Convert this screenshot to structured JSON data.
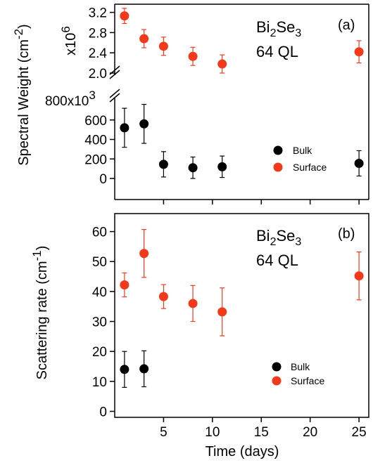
{
  "figure": {
    "shared_ylabel": "Spectral Weight (cm",
    "shared_ylabel_sup": "-2",
    "shared_ylabel_end": ")",
    "xlabel": "Time (days)"
  },
  "chart_data": [
    {
      "id": "a-top",
      "type": "scatter",
      "panel_label": "(a)",
      "compound": {
        "base": "Bi",
        "sub1": "2",
        "mid": "Se",
        "sub2": "3"
      },
      "sample": "64 QL",
      "multiplier": {
        "base": "x10",
        "exp": "6"
      },
      "ylim": [
        2.0,
        3.25
      ],
      "yticks": [
        2.0,
        2.4,
        2.8,
        3.2
      ],
      "ytick_labels": [
        "2.0",
        "2.4",
        "2.8",
        "3.2"
      ],
      "xlim": [
        0,
        26
      ],
      "series": [
        {
          "name": "Surface",
          "color": "#f23a1a",
          "points": [
            {
              "x": 1,
              "y": 3.13,
              "err": 0.15
            },
            {
              "x": 3,
              "y": 2.68,
              "err": 0.18
            },
            {
              "x": 5,
              "y": 2.53,
              "err": 0.18
            },
            {
              "x": 8,
              "y": 2.33,
              "err": 0.18
            },
            {
              "x": 11,
              "y": 2.18,
              "err": 0.18
            },
            {
              "x": 25,
              "y": 2.42,
              "err": 0.22
            }
          ]
        }
      ]
    },
    {
      "id": "a-bottom",
      "type": "scatter",
      "multiplier": {
        "base": "800x10",
        "exp": "3"
      },
      "ylim": [
        0,
        800
      ],
      "yticks": [
        0,
        200,
        400,
        600
      ],
      "ytick_labels": [
        "0",
        "200",
        "400",
        "600"
      ],
      "xlim": [
        0,
        26
      ],
      "xticks": [
        5,
        10,
        15,
        20,
        25
      ],
      "legend": [
        {
          "label": "Bulk",
          "color": "#000000"
        },
        {
          "label": "Surface",
          "color": "#f23a1a"
        }
      ],
      "series": [
        {
          "name": "Bulk",
          "color": "#000000",
          "points": [
            {
              "x": 1,
              "y": 520,
              "err": 200
            },
            {
              "x": 3,
              "y": 560,
              "err": 200
            },
            {
              "x": 5,
              "y": 145,
              "err": 130
            },
            {
              "x": 8,
              "y": 110,
              "err": 110
            },
            {
              "x": 11,
              "y": 120,
              "err": 110
            },
            {
              "x": 25,
              "y": 155,
              "err": 130
            }
          ]
        }
      ]
    },
    {
      "id": "b",
      "type": "scatter",
      "panel_label": "(b)",
      "compound": {
        "base": "Bi",
        "sub1": "2",
        "mid": "Se",
        "sub2": "3"
      },
      "sample": "64 QL",
      "ylabel": "Scattering rate (cm",
      "ylabel_sup": "-1",
      "ylabel_end": ")",
      "ylim": [
        -2,
        66
      ],
      "yticks": [
        0,
        10,
        20,
        30,
        40,
        50,
        60
      ],
      "ytick_labels": [
        "0",
        "10",
        "20",
        "30",
        "40",
        "50",
        "60"
      ],
      "xlim": [
        0,
        26
      ],
      "xticks": [
        5,
        10,
        15,
        20,
        25
      ],
      "xtick_labels": [
        "5",
        "10",
        "15",
        "20",
        "25"
      ],
      "legend": [
        {
          "label": "Bulk",
          "color": "#000000"
        },
        {
          "label": "Surface",
          "color": "#f23a1a"
        }
      ],
      "series": [
        {
          "name": "Bulk",
          "color": "#000000",
          "points": [
            {
              "x": 1,
              "y": 14,
              "err": 6
            },
            {
              "x": 3,
              "y": 14.2,
              "err": 6
            }
          ]
        },
        {
          "name": "Surface",
          "color": "#f23a1a",
          "points": [
            {
              "x": 1,
              "y": 42.2,
              "err": 4
            },
            {
              "x": 3,
              "y": 52.7,
              "err": 8
            },
            {
              "x": 5,
              "y": 38.3,
              "err": 4
            },
            {
              "x": 8,
              "y": 36,
              "err": 6
            },
            {
              "x": 11,
              "y": 33.2,
              "err": 8
            },
            {
              "x": 25,
              "y": 45.2,
              "err": 8
            }
          ]
        }
      ]
    }
  ]
}
